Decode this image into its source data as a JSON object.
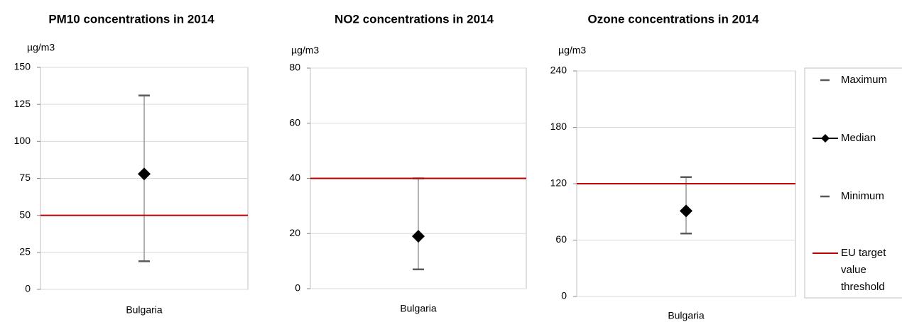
{
  "chart_data": [
    {
      "type": "range",
      "title": "PM10 concentrations in 2014",
      "y_label": "µg/m3",
      "categories": [
        "Bulgaria"
      ],
      "ylim": [
        0,
        150
      ],
      "yticks": [
        0,
        25,
        50,
        75,
        100,
        125,
        150
      ],
      "grid": true,
      "series": [
        {
          "name": "Maximum",
          "color": "#595959",
          "values": [
            131
          ]
        },
        {
          "name": "Median",
          "color": "#000000",
          "values": [
            78
          ]
        },
        {
          "name": "Minimum",
          "color": "#595959",
          "values": [
            19
          ]
        },
        {
          "name": "EU target value threshold",
          "color": "#c00000",
          "values": [
            50
          ]
        }
      ]
    },
    {
      "type": "range",
      "title": "NO2 concentrations in 2014",
      "y_label": "µg/m3",
      "categories": [
        "Bulgaria"
      ],
      "ylim": [
        0,
        80
      ],
      "yticks": [
        0,
        20,
        40,
        60,
        80
      ],
      "grid": true,
      "series": [
        {
          "name": "Maximum",
          "color": "#595959",
          "values": [
            40
          ]
        },
        {
          "name": "Median",
          "color": "#000000",
          "values": [
            19
          ]
        },
        {
          "name": "Minimum",
          "color": "#595959",
          "values": [
            7
          ]
        },
        {
          "name": "EU target value threshold",
          "color": "#c00000",
          "values": [
            40
          ]
        }
      ]
    },
    {
      "type": "range",
      "title": "Ozone concentrations in 2014",
      "y_label": "µg/m3",
      "categories": [
        "Bulgaria"
      ],
      "ylim": [
        0,
        240
      ],
      "yticks": [
        0,
        60,
        120,
        180,
        240
      ],
      "grid": true,
      "series": [
        {
          "name": "Maximum",
          "color": "#595959",
          "values": [
            127
          ]
        },
        {
          "name": "Median",
          "color": "#000000",
          "values": [
            91
          ]
        },
        {
          "name": "Minimum",
          "color": "#595959",
          "values": [
            67
          ]
        },
        {
          "name": "EU target value threshold",
          "color": "#c00000",
          "values": [
            120
          ]
        }
      ]
    }
  ]
}
